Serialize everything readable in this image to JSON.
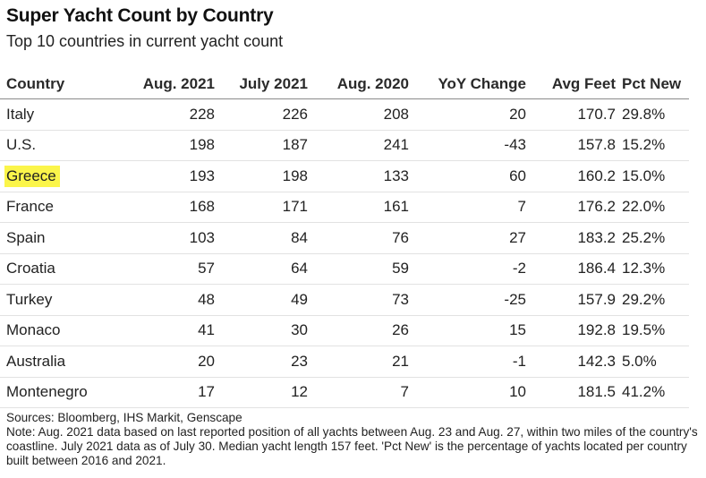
{
  "chart_data": {
    "type": "table",
    "title": "Super Yacht Count by Country",
    "subtitle": "Top 10 countries in current yacht count",
    "columns": [
      "Country",
      "Aug. 2021",
      "July 2021",
      "Aug. 2020",
      "YoY Change",
      "Avg Feet",
      "Pct New"
    ],
    "rows": [
      [
        "Italy",
        "228",
        "226",
        "208",
        "20",
        "170.7",
        "29.8%"
      ],
      [
        "U.S.",
        "198",
        "187",
        "241",
        "-43",
        "157.8",
        "15.2%"
      ],
      [
        "Greece",
        "193",
        "198",
        "133",
        "60",
        "160.2",
        "15.0%"
      ],
      [
        "France",
        "168",
        "171",
        "161",
        "7",
        "176.2",
        "22.0%"
      ],
      [
        "Spain",
        "103",
        "84",
        "76",
        "27",
        "183.2",
        "25.2%"
      ],
      [
        "Croatia",
        "57",
        "64",
        "59",
        "-2",
        "186.4",
        "12.3%"
      ],
      [
        "Turkey",
        "48",
        "49",
        "73",
        "-25",
        "157.9",
        "29.2%"
      ],
      [
        "Monaco",
        "41",
        "30",
        "26",
        "15",
        "192.8",
        "19.5%"
      ],
      [
        "Australia",
        "20",
        "23",
        "21",
        "-1",
        "142.3",
        "5.0%"
      ],
      [
        "Montenegro",
        "17",
        "12",
        "7",
        "10",
        "181.5",
        "41.2%"
      ]
    ],
    "highlighted_row": "Greece",
    "highlight_color": "#fbf54a",
    "sources": "Sources: Bloomberg, IHS Markit, Genscape",
    "note": "Note: Aug. 2021 data based on last reported position of all yachts between Aug. 23 and Aug. 27, within two miles of the country's coastline. July 2021 data as of July 30. Median yacht length 157 feet. 'Pct New' is the percentage of yachts located per country built between 2016 and 2021."
  }
}
